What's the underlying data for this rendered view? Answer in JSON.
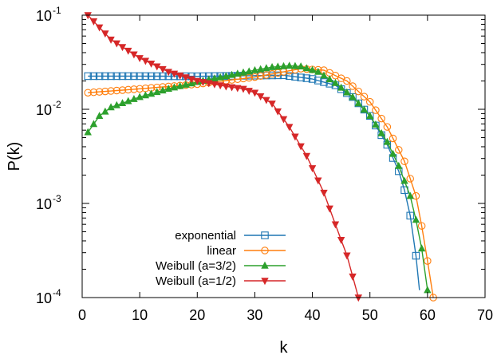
{
  "chart_data": {
    "type": "line",
    "title": "",
    "xlabel": "k",
    "ylabel": "P(k)",
    "xlim": [
      0,
      70
    ],
    "ylim": [
      0.0001,
      0.1
    ],
    "yscale": "log",
    "grid": false,
    "legend_position": "bottom-left",
    "x_ticks": [
      {
        "value": 0,
        "label": "0"
      },
      {
        "value": 10,
        "label": "10"
      },
      {
        "value": 20,
        "label": "20"
      },
      {
        "value": 30,
        "label": "30"
      },
      {
        "value": 40,
        "label": "40"
      },
      {
        "value": 50,
        "label": "50"
      },
      {
        "value": 60,
        "label": "60"
      },
      {
        "value": 70,
        "label": "70"
      }
    ],
    "y_ticks": [
      {
        "value": 0.1,
        "base": "10",
        "exp": "-1"
      },
      {
        "value": 0.01,
        "base": "10",
        "exp": "-2"
      },
      {
        "value": 0.001,
        "base": "10",
        "exp": "-3"
      },
      {
        "value": 0.0001,
        "base": "10",
        "exp": "-4"
      }
    ],
    "series": [
      {
        "name": "exponential",
        "color": "#1f77b4",
        "marker": "open-square",
        "anchors": [
          [
            1,
            0.0225
          ],
          [
            10,
            0.0225
          ],
          [
            20,
            0.0224
          ],
          [
            30,
            0.0228
          ],
          [
            35,
            0.023
          ],
          [
            40,
            0.021
          ],
          [
            44,
            0.018
          ],
          [
            47,
            0.0135
          ],
          [
            50,
            0.0085
          ],
          [
            53,
            0.0042
          ],
          [
            55,
            0.0022
          ],
          [
            56.5,
            0.0011
          ],
          [
            57.5,
            0.0005
          ],
          [
            58.2,
            0.00022
          ],
          [
            58.6,
            0.00012
          ]
        ]
      },
      {
        "name": "linear",
        "color": "#ff7f0e",
        "marker": "open-circle",
        "anchors": [
          [
            1,
            0.015
          ],
          [
            10,
            0.0165
          ],
          [
            20,
            0.0185
          ],
          [
            30,
            0.022
          ],
          [
            35,
            0.025
          ],
          [
            38,
            0.027
          ],
          [
            42,
            0.026
          ],
          [
            46,
            0.02
          ],
          [
            50,
            0.012
          ],
          [
            53,
            0.0065
          ],
          [
            56,
            0.0028
          ],
          [
            58,
            0.0012
          ],
          [
            59.5,
            0.0004
          ],
          [
            60.5,
            0.00015
          ],
          [
            61,
            0.0001
          ]
        ]
      },
      {
        "name": "Weibull (a=3/2)",
        "color": "#2ca02c",
        "marker": "filled-triangle-up",
        "anchors": [
          [
            1,
            0.0057
          ],
          [
            3,
            0.0085
          ],
          [
            5,
            0.0105
          ],
          [
            10,
            0.0135
          ],
          [
            15,
            0.0165
          ],
          [
            20,
            0.0195
          ],
          [
            25,
            0.0225
          ],
          [
            30,
            0.026
          ],
          [
            33,
            0.028
          ],
          [
            36,
            0.029
          ],
          [
            38,
            0.0285
          ],
          [
            41,
            0.025
          ],
          [
            44,
            0.019
          ],
          [
            47,
            0.0135
          ],
          [
            50,
            0.0085
          ],
          [
            53,
            0.0045
          ],
          [
            55,
            0.0025
          ],
          [
            57,
            0.0012
          ],
          [
            58.5,
            0.0005
          ],
          [
            59.5,
            0.00022
          ],
          [
            60,
            0.00012
          ]
        ]
      },
      {
        "name": "Weibull (a=1/2)",
        "color": "#d62728",
        "marker": "filled-triangle-down",
        "anchors": [
          [
            1,
            0.1
          ],
          [
            5,
            0.055
          ],
          [
            10,
            0.035
          ],
          [
            15,
            0.025
          ],
          [
            20,
            0.02
          ],
          [
            25,
            0.0175
          ],
          [
            28,
            0.0165
          ],
          [
            30,
            0.015
          ],
          [
            33,
            0.0115
          ],
          [
            36,
            0.0065
          ],
          [
            39,
            0.0032
          ],
          [
            42,
            0.0013
          ],
          [
            44,
            0.0006
          ],
          [
            46,
            0.00028
          ],
          [
            48,
            0.0001
          ]
        ]
      }
    ]
  }
}
